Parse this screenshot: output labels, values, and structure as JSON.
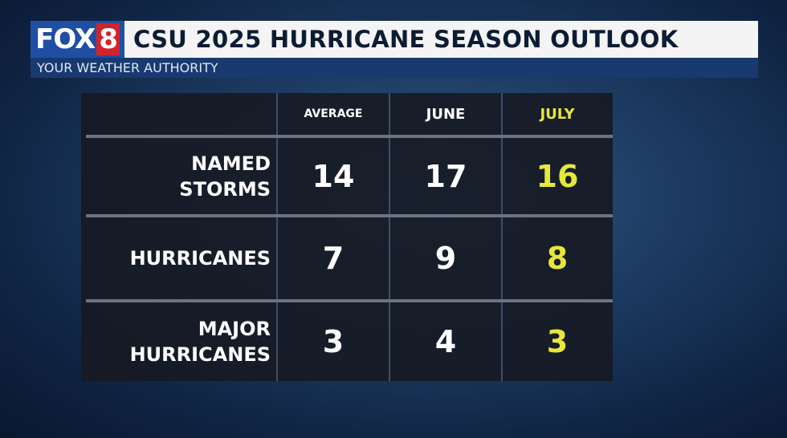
{
  "header": {
    "logo": {
      "brand": "FOX",
      "number": "8"
    },
    "title": "CSU 2025 HURRICANE SEASON OUTLOOK",
    "subtitle": "YOUR WEATHER AUTHORITY"
  },
  "table": {
    "columns": [
      "AVERAGE",
      "JUNE",
      "JULY"
    ],
    "rows": [
      {
        "label": "NAMED STORMS",
        "values": [
          14,
          17,
          16
        ]
      },
      {
        "label": "HURRICANES",
        "values": [
          7,
          9,
          8
        ]
      },
      {
        "label": "MAJOR HURRICANES",
        "values": [
          3,
          4,
          3
        ]
      }
    ]
  }
}
